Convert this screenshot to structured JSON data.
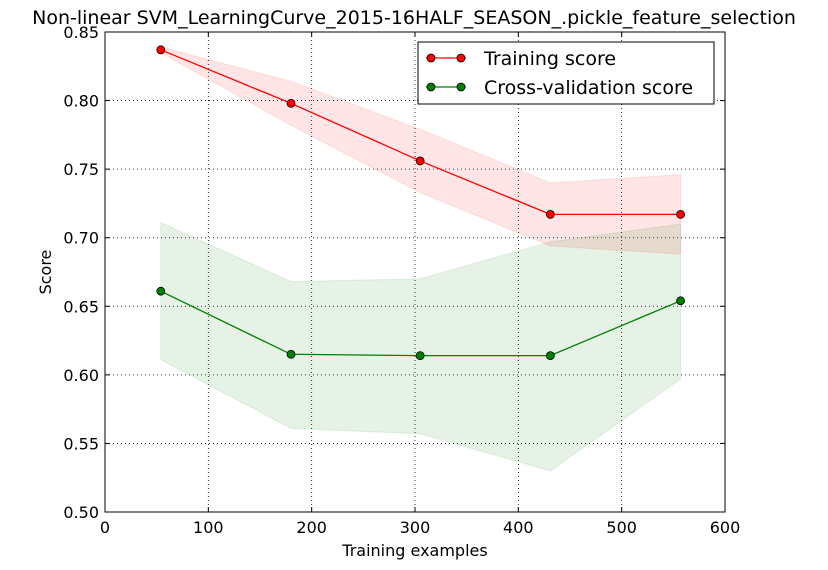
{
  "chart_data": {
    "type": "line",
    "title": "Non-linear SVM_LearningCurve_2015-16HALF_SEASON_.pickle_feature_selection",
    "xlabel": "Training examples",
    "ylabel": "Score",
    "xlim": [
      0,
      600
    ],
    "ylim": [
      0.5,
      0.85
    ],
    "xticks": [
      0,
      100,
      200,
      300,
      400,
      500,
      600
    ],
    "yticks": [
      0.5,
      0.55,
      0.6,
      0.65,
      0.7,
      0.75,
      0.8,
      0.85
    ],
    "xtick_labels": [
      "0",
      "100",
      "200",
      "300",
      "400",
      "500",
      "600"
    ],
    "ytick_labels": [
      "0.50",
      "0.55",
      "0.60",
      "0.65",
      "0.70",
      "0.75",
      "0.80",
      "0.85"
    ],
    "grid": true,
    "legend_position": "top-right",
    "x": [
      54,
      180,
      305,
      431,
      557
    ],
    "series": [
      {
        "name": "Training score",
        "color": "#ff0000",
        "band_color": "#ff0000",
        "values": [
          0.837,
          0.798,
          0.756,
          0.717,
          0.717
        ],
        "band_lower": [
          0.835,
          0.782,
          0.733,
          0.694,
          0.688
        ],
        "band_upper": [
          0.839,
          0.814,
          0.779,
          0.74,
          0.746
        ]
      },
      {
        "name": "Cross-validation score",
        "color": "#007f00",
        "band_color": "#008000",
        "values": [
          0.661,
          0.615,
          0.614,
          0.614,
          0.654
        ],
        "band_lower": [
          0.611,
          0.561,
          0.557,
          0.53,
          0.597
        ],
        "band_upper": [
          0.711,
          0.668,
          0.67,
          0.697,
          0.71
        ]
      }
    ]
  }
}
